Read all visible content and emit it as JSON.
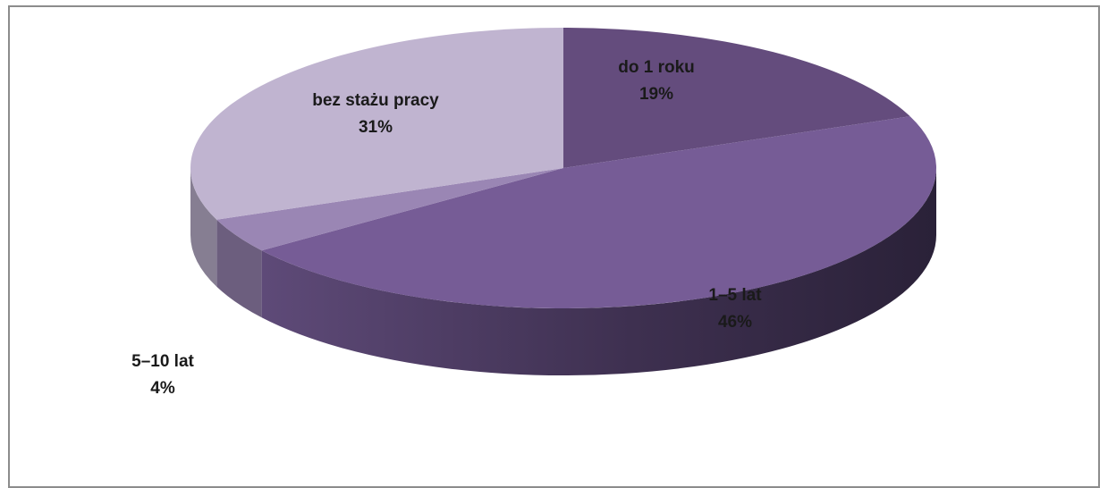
{
  "chart_data": {
    "type": "pie",
    "style": "3d",
    "title": "",
    "slices": [
      {
        "label": "do 1 roku",
        "value": 19,
        "value_label": "19%",
        "color": "#644c7d"
      },
      {
        "label": "1–5 lat",
        "value": 46,
        "value_label": "46%",
        "color": "#765c96"
      },
      {
        "label": "5–10 lat",
        "value": 4,
        "value_label": "4%",
        "color": "#9a86b4"
      },
      {
        "label": "bez stażu pracy",
        "value": 31,
        "value_label": "31%",
        "color": "#c0b4d0"
      }
    ],
    "legend": "none",
    "data_labels": "category name and percentage"
  }
}
